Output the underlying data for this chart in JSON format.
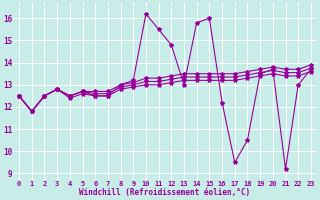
{
  "background_color": "#c8ece8",
  "line_color": "#990099",
  "grid_color": "#aadddd",
  "x_ticks": [
    0,
    1,
    2,
    3,
    4,
    5,
    6,
    7,
    8,
    9,
    10,
    11,
    12,
    13,
    14,
    15,
    16,
    17,
    18,
    19,
    20,
    21,
    22,
    23
  ],
  "y_ticks": [
    9,
    10,
    11,
    12,
    13,
    14,
    15,
    16
  ],
  "ylim": [
    8.7,
    16.7
  ],
  "xlim": [
    -0.5,
    23.5
  ],
  "xlabel": "Windchill (Refroidissement éolien,°C)",
  "main_y": [
    12.5,
    11.8,
    12.5,
    12.8,
    12.5,
    12.7,
    12.5,
    12.5,
    13.0,
    13.2,
    16.2,
    15.5,
    14.8,
    13.0,
    15.8,
    16.0,
    12.2,
    9.5,
    10.5,
    13.5,
    13.7,
    9.2,
    13.0,
    13.7
  ],
  "trend1": [
    12.5,
    11.8,
    12.5,
    12.8,
    12.4,
    12.6,
    12.5,
    12.5,
    12.8,
    12.9,
    13.0,
    13.0,
    13.1,
    13.2,
    13.2,
    13.2,
    13.2,
    13.2,
    13.3,
    13.4,
    13.5,
    13.4,
    13.4,
    13.6
  ],
  "trend2": [
    12.5,
    11.8,
    12.5,
    12.8,
    12.5,
    12.7,
    12.6,
    12.6,
    12.9,
    13.0,
    13.15,
    13.15,
    13.25,
    13.35,
    13.35,
    13.35,
    13.35,
    13.35,
    13.45,
    13.55,
    13.65,
    13.55,
    13.55,
    13.75
  ],
  "trend3": [
    12.5,
    11.8,
    12.5,
    12.8,
    12.5,
    12.7,
    12.7,
    12.7,
    13.0,
    13.1,
    13.3,
    13.3,
    13.4,
    13.5,
    13.5,
    13.5,
    13.5,
    13.5,
    13.6,
    13.7,
    13.8,
    13.7,
    13.7,
    13.9
  ],
  "marker": "*",
  "markersize": 3,
  "linewidth": 0.8,
  "tick_fontsize": 5,
  "xlabel_fontsize": 5.5
}
